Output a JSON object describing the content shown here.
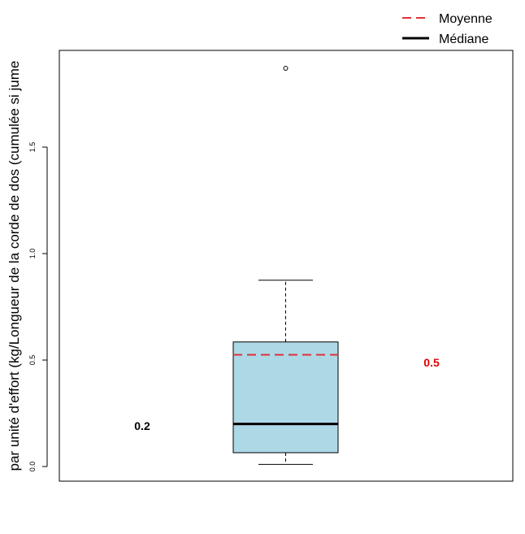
{
  "chart_data": {
    "type": "boxplot",
    "title": "",
    "xlabel": "",
    "ylabel": "par unité d'effort (kg/Longueur de la corde de dos (cumulée si jume",
    "ylim": [
      0,
      1.95
    ],
    "y_ticks": [
      0.0,
      0.5,
      1.0,
      1.5
    ],
    "y_tick_labels": [
      "0.0",
      "0.5",
      "1.0",
      "1.5"
    ],
    "grid": false,
    "legend_position": "top-right",
    "box": {
      "min": 0.01,
      "q1": 0.065,
      "median": 0.2,
      "mean": 0.525,
      "q3": 0.585,
      "max": 0.875,
      "outliers": [
        1.87
      ]
    },
    "legend": [
      {
        "label": "Moyenne",
        "style": "dashed",
        "color": "#e0303a"
      },
      {
        "label": "Médiane",
        "style": "solid",
        "color": "#000000"
      }
    ],
    "annotations": [
      {
        "text": "0.2",
        "color": "#000000",
        "refers_to": "median"
      },
      {
        "text": "0.5",
        "color": "#e00000",
        "refers_to": "mean"
      }
    ],
    "colors": {
      "box_fill": "#add8e6",
      "median_line": "#000000",
      "mean_line": "#e0303a",
      "axis": "#000000"
    }
  }
}
